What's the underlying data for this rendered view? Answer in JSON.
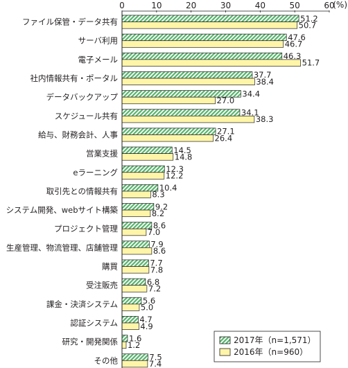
{
  "chart_data": {
    "type": "bar",
    "orientation": "horizontal",
    "unit_label": "(%)",
    "xlim": [
      0,
      60
    ],
    "x_ticks": [
      "0",
      "10",
      "20",
      "30",
      "40",
      "50",
      "60"
    ],
    "categories": [
      "ファイル保管・データ共有",
      "サーバ利用",
      "電子メール",
      "社内情報共有・ポータル",
      "データバックアップ",
      "スケジュール共有",
      "給与、財務会計、人事",
      "営業支援",
      "eラーニング",
      "取引先との情報共有",
      "システム開発、webサイト構築",
      "プロジェクト管理",
      "生産管理、物流管理、店舗管理",
      "購買",
      "受注販売",
      "課金・決済システム",
      "認証システム",
      "研究・開発関係",
      "その他"
    ],
    "series": [
      {
        "name": "2017年（n=1,571）",
        "fill": "#55b36a",
        "pattern": "diagonal-hatch",
        "values": [
          51.2,
          47.6,
          46.3,
          37.7,
          34.4,
          34.1,
          27.1,
          14.5,
          12.3,
          10.4,
          9.2,
          8.6,
          7.9,
          7.7,
          6.8,
          5.6,
          4.7,
          1.6,
          7.5
        ],
        "labels": [
          "51.2",
          "47.6",
          "46.3",
          "37.7",
          "34.4",
          "34.1",
          "27.1",
          "14.5",
          "12.3",
          "10.4",
          "9.2",
          "8.6",
          "7.9",
          "7.7",
          "6.8",
          "5.6",
          "4.7",
          "1.6",
          "7.5"
        ]
      },
      {
        "name": "2016年（n=960）",
        "fill": "#fff5a8",
        "pattern": "solid",
        "values": [
          50.7,
          46.7,
          51.7,
          38.4,
          27.0,
          38.3,
          26.4,
          14.8,
          12.2,
          8.3,
          8.2,
          7.0,
          8.6,
          7.8,
          7.2,
          5.0,
          4.9,
          1.2,
          7.4
        ],
        "labels": [
          "50.7",
          "46.7",
          "51.7",
          "38.4",
          "27.0",
          "38.3",
          "26.4",
          "14.8",
          "12.2",
          "8.3",
          "8.2",
          "7.0",
          "8.6",
          "7.8",
          "7.2",
          "5.0",
          "4.9",
          "1.2",
          "7.4"
        ]
      }
    ],
    "legend_placement": "bottom-right",
    "grid": false
  }
}
